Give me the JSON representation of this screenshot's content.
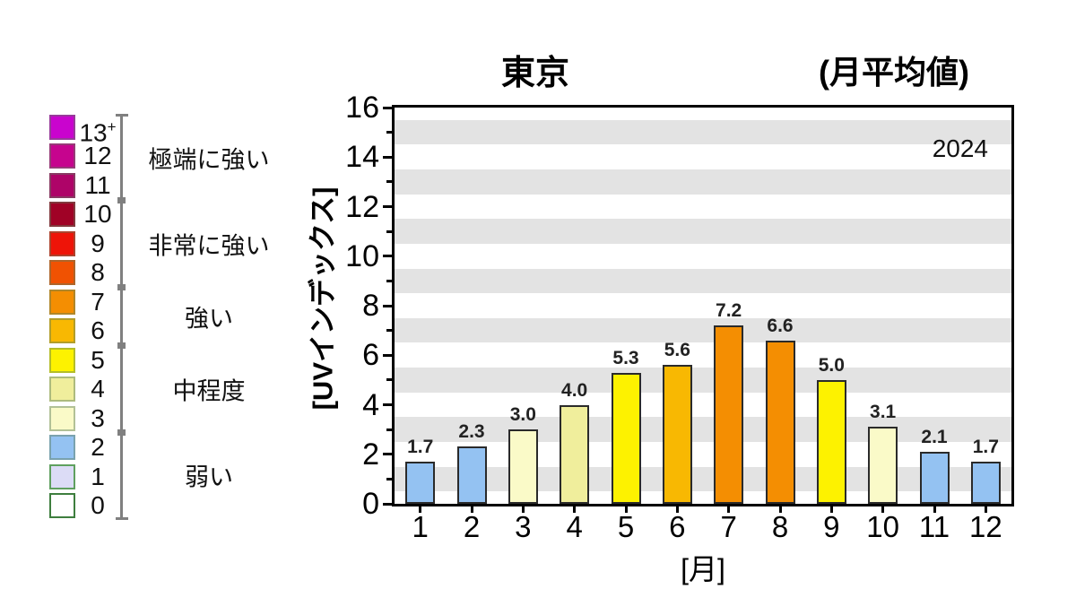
{
  "header": {
    "title": "東京",
    "subtitle": "(月平均値)",
    "year": "2024"
  },
  "y_axis": {
    "label": "[UVインデックス]",
    "max": 16,
    "major_ticks": [
      {
        "v": 0,
        "label": "0"
      },
      {
        "v": 2,
        "label": "2"
      },
      {
        "v": 4,
        "label": "4"
      },
      {
        "v": 6,
        "label": "6"
      },
      {
        "v": 8,
        "label": "8"
      },
      {
        "v": 10,
        "label": "10"
      },
      {
        "v": 12,
        "label": "12"
      },
      {
        "v": 14,
        "label": "14"
      },
      {
        "v": 16,
        "label": "16"
      }
    ],
    "minor_ticks": [
      1,
      3,
      5,
      7,
      9,
      11,
      13,
      15
    ]
  },
  "x_axis": {
    "label": "[月]"
  },
  "chart_data": {
    "type": "bar",
    "title": "東京 (月平均値) 2024",
    "categories": [
      "1",
      "2",
      "3",
      "4",
      "5",
      "6",
      "7",
      "8",
      "9",
      "10",
      "11",
      "12"
    ],
    "values": [
      1.7,
      2.3,
      3.0,
      4.0,
      5.3,
      5.6,
      7.2,
      6.6,
      5.0,
      3.1,
      2.1,
      1.7
    ],
    "value_labels": [
      "1.7",
      "2.3",
      "3.0",
      "4.0",
      "5.3",
      "5.6",
      "7.2",
      "6.6",
      "5.0",
      "3.1",
      "2.1",
      "1.7"
    ],
    "rounded_uv_index": [
      2,
      2,
      3,
      4,
      5,
      6,
      7,
      7,
      5,
      3,
      2,
      2
    ],
    "xlabel": "[月]",
    "ylabel": "[UVインデックス]",
    "ylim": [
      0,
      16
    ],
    "grid": "horizontal-bands",
    "gridband_centers": [
      1,
      3,
      5,
      7,
      9,
      11,
      13,
      15
    ],
    "annotation": "2024",
    "legend_position": "left"
  },
  "uv_scale": {
    "items": [
      {
        "label": "13+",
        "color": "#C904CE"
      },
      {
        "label": "12",
        "color": "#C6048E"
      },
      {
        "label": "11",
        "color": "#AE0468"
      },
      {
        "label": "10",
        "color": "#A00226"
      },
      {
        "label": "9",
        "color": "#EE1408"
      },
      {
        "label": "8",
        "color": "#F05202"
      },
      {
        "label": "7",
        "color": "#F48E02"
      },
      {
        "label": "6",
        "color": "#F8B802"
      },
      {
        "label": "5",
        "color": "#FDF200"
      },
      {
        "label": "4",
        "color": "#F0EE9C"
      },
      {
        "label": "3",
        "color": "#FAFAC8"
      },
      {
        "label": "2",
        "color": "#94C2F2"
      },
      {
        "label": "1",
        "color": "#DCDCF6",
        "border": "#5FA05F"
      },
      {
        "label": "0",
        "color": "#FFFFFF",
        "border": "#3E7E3E"
      }
    ],
    "groups": [
      {
        "label": "極端に強い"
      },
      {
        "label": "非常に強い"
      },
      {
        "label": "強い"
      },
      {
        "label": "中程度"
      },
      {
        "label": "弱い"
      }
    ],
    "group_boundaries": [
      0,
      3,
      6,
      8,
      11,
      14
    ]
  },
  "colors": {
    "band": "#E3E3E3",
    "bar_border": "#2A2A2A",
    "plot_border": "#000000",
    "scale_line": "#808080",
    "background": "#FFFFFF"
  }
}
